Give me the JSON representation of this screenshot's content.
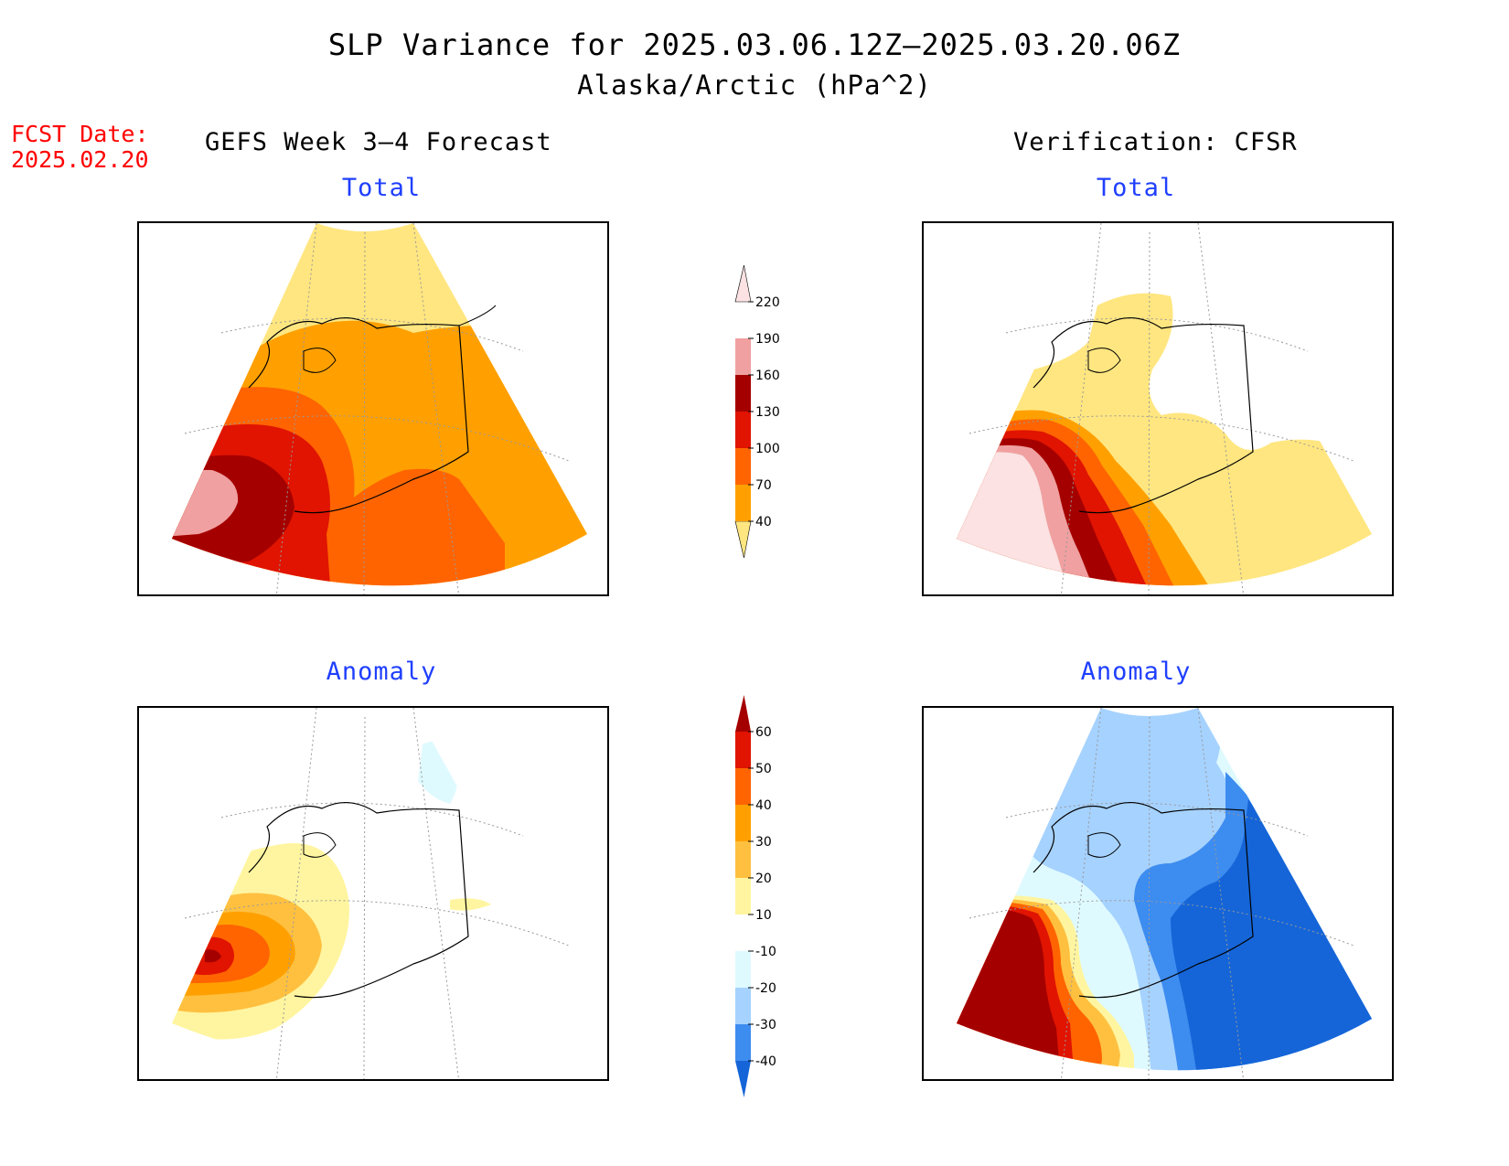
{
  "title": {
    "line1": "SLP Variance for 2025.03.06.12Z–2025.03.20.06Z",
    "line2": "Alaska/Arctic (hPa^2)"
  },
  "forecast_date": {
    "label": "FCST Date:",
    "value": "2025.02.20"
  },
  "columns": {
    "left": "GEFS Week 3–4 Forecast",
    "right": "Verification: CFSR"
  },
  "panels": {
    "fcst_total": "Total",
    "verif_total": "Total",
    "fcst_anomaly": "Anomaly",
    "verif_anomaly": "Anomaly"
  },
  "colorbars": {
    "total": {
      "labels": [
        "40",
        "70",
        "100",
        "130",
        "160",
        "190",
        "220"
      ],
      "colors": [
        "#ffe680",
        "#ffa000",
        "#ff6400",
        "#e01400",
        "#a50000",
        "#f0a0a0",
        "#fce2e2"
      ]
    },
    "anomaly": {
      "labels": [
        "-40",
        "-30",
        "-20",
        "-10",
        "10",
        "20",
        "30",
        "40",
        "50",
        "60"
      ],
      "colors": [
        "#1565d8",
        "#3d8cf0",
        "#a6d2ff",
        "#dffaff",
        "#ffffff",
        "#fff5a0",
        "#ffc040",
        "#ffa000",
        "#ff6400",
        "#e01400",
        "#a50000"
      ]
    }
  }
}
